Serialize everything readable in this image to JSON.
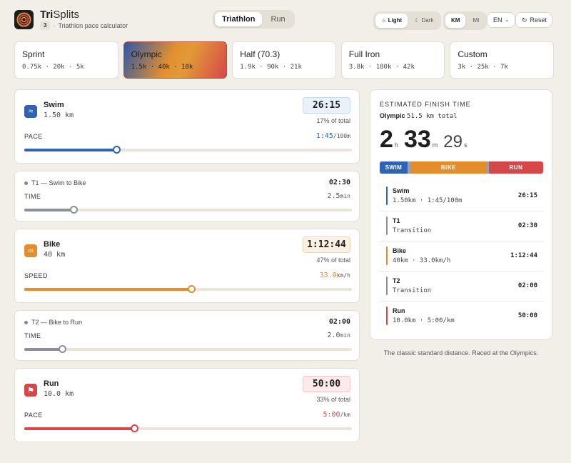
{
  "app": {
    "brand_bold": "Tri",
    "brand_rest": "Splits",
    "badge": "3",
    "subtitle": "Triathlon pace calculator"
  },
  "mode": {
    "options": [
      "Triathlon",
      "Run"
    ],
    "active": "Triathlon"
  },
  "theme": {
    "options": [
      "Light",
      "Dark"
    ],
    "active": "Light"
  },
  "units": {
    "options": [
      "KM",
      "MI"
    ],
    "active": "KM"
  },
  "language": {
    "value": "EN"
  },
  "reset_label": "Reset",
  "presets": [
    {
      "name": "Sprint",
      "values": "0.75k · 20k · 5k"
    },
    {
      "name": "Olympic",
      "values": "1.5k · 40k · 10k",
      "active": true
    },
    {
      "name": "Half (70.3)",
      "values": "1.9k · 90k · 21k"
    },
    {
      "name": "Full Iron",
      "values": "3.8k · 180k · 42k"
    },
    {
      "name": "Custom",
      "values": "3k · 25k · 7k"
    }
  ],
  "legs": {
    "swim": {
      "name": "Swim",
      "distance": "1.50 km",
      "time": "26:15",
      "pct": "17% of total",
      "metric": "PACE",
      "value": "1:45",
      "unit": "/100m",
      "slider": 0.28,
      "color": "#2e63b5"
    },
    "t1": {
      "title": "T1 — Swim to Bike",
      "time": "02:30",
      "metric": "TIME",
      "value": "2.5",
      "unit": "min",
      "slider": 0.15
    },
    "bike": {
      "name": "Bike",
      "distance": "40 km",
      "time": "1:12:44",
      "pct": "47% of total",
      "metric": "SPEED",
      "value": "33.0",
      "unit": "km/h",
      "slider": 0.51,
      "color": "#e38d2c"
    },
    "t2": {
      "title": "T2 — Bike to Run",
      "time": "02:00",
      "metric": "TIME",
      "value": "2.0",
      "unit": "min",
      "slider": 0.115
    },
    "run": {
      "name": "Run",
      "distance": "10.0 km",
      "time": "50:00",
      "pct": "33% of total",
      "metric": "PACE",
      "value": "5:00",
      "unit": "/km",
      "slider": 0.335,
      "color": "#d6474a"
    }
  },
  "summary": {
    "label": "ESTIMATED FINISH TIME",
    "preset": "Olympic",
    "total": "51.5 km total",
    "hours": "2",
    "h_unit": "h",
    "minutes": "33",
    "m_unit": "m",
    "seconds": "29",
    "s_unit": "s",
    "split_bar": [
      {
        "label": "SWIM",
        "share": 0.17,
        "color": "#2e63b5"
      },
      {
        "label": "",
        "share": 0.016,
        "color": "#9aa0aa"
      },
      {
        "label": "BIKE",
        "share": 0.47,
        "color": "#e38d2c"
      },
      {
        "label": "",
        "share": 0.013,
        "color": "#9aa0aa"
      },
      {
        "label": "RUN",
        "share": 0.33,
        "color": "#d6474a"
      }
    ],
    "rows": [
      {
        "name": "Swim",
        "detail": "1.50km · 1:45/100m",
        "time": "26:15",
        "color": "#2e63b5"
      },
      {
        "name": "T1",
        "detail": "Transition",
        "time": "02:30",
        "color": "#8a8f99"
      },
      {
        "name": "Bike",
        "detail": "40km · 33.0km/h",
        "time": "1:12:44",
        "color": "#e38d2c"
      },
      {
        "name": "T2",
        "detail": "Transition",
        "time": "02:00",
        "color": "#8a8f99"
      },
      {
        "name": "Run",
        "detail": "10.0km · 5:00/km",
        "time": "50:00",
        "color": "#d6474a"
      }
    ]
  },
  "caption": "The classic standard distance. Raced at the Olympics."
}
